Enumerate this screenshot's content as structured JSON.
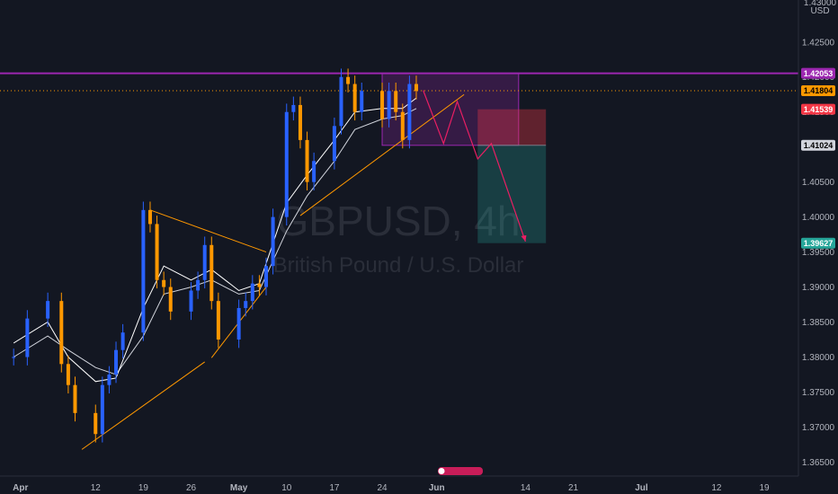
{
  "chart_data": {
    "type": "candlestick",
    "symbol": "GBPUSD",
    "timeframe": "4h",
    "watermark_title": "GBPUSD, 4h",
    "watermark_subtitle": "British Pound / U.S. Dollar",
    "y_axis_unit": "USD",
    "ylim": [
      1.363,
      1.431
    ],
    "y_ticks": [
      1.425,
      1.42,
      1.415,
      1.41,
      1.405,
      1.4,
      1.395,
      1.39,
      1.385,
      1.38,
      1.375,
      1.37,
      1.365
    ],
    "y_tick_labels": [
      "1.42500",
      "1.42000",
      "1.41500",
      "1.41000",
      "1.40500",
      "1.40000",
      "1.39500",
      "1.39000",
      "1.38500",
      "1.38000",
      "1.37500",
      "1.37000",
      "1.36500"
    ],
    "y_top_partial_label": "1.43000",
    "x_tick_labels": [
      "Apr",
      "12",
      "19",
      "26",
      "May",
      "10",
      "17",
      "24",
      "Jun",
      "14",
      "21",
      "Jul",
      "12",
      "19"
    ],
    "x_tick_dates": [
      "2021-04-01",
      "2021-04-12",
      "2021-04-19",
      "2021-04-26",
      "2021-05-03",
      "2021-05-10",
      "2021-05-17",
      "2021-05-24",
      "2021-06-01",
      "2021-06-14",
      "2021-06-21",
      "2021-07-01",
      "2021-07-12",
      "2021-07-19"
    ],
    "price_tags": [
      {
        "label": "1.42053",
        "value": 1.42053,
        "color": "#9c27b0",
        "text_color": "#ffffff"
      },
      {
        "label": "1.41804",
        "value": 1.41804,
        "color": "#ff9800",
        "text_color": "#000000"
      },
      {
        "label": "1.41539",
        "value": 1.41539,
        "color": "#f23645",
        "text_color": "#ffffff"
      },
      {
        "label": "1.41024",
        "value": 1.41024,
        "color": "#d1d4dc",
        "text_color": "#000000"
      },
      {
        "label": "1.39627",
        "value": 1.39627,
        "color": "#26a69a",
        "text_color": "#ffffff"
      }
    ],
    "horizontal_line": {
      "value": 1.42053,
      "color": "#9c27b0"
    },
    "last_price_line": {
      "value": 1.41804,
      "color": "#ff9800"
    },
    "short_position": {
      "entry": 1.41024,
      "stop": 1.41539,
      "target": 1.39627,
      "start_date": "2021-06-07",
      "end_date": "2021-06-17"
    },
    "consolidation_box": {
      "top": 1.42053,
      "bottom": 1.41024,
      "start_date": "2021-05-24",
      "end_date": "2021-06-13"
    },
    "trendlines": [
      {
        "from": [
          "2021-04-10",
          1.3668
        ],
        "to": [
          "2021-04-28",
          1.3793
        ]
      },
      {
        "from": [
          "2021-04-29",
          1.3799
        ],
        "to": [
          "2021-05-07",
          1.39
        ]
      },
      {
        "from": [
          "2021-04-20",
          1.401
        ],
        "to": [
          "2021-05-07",
          1.395
        ]
      },
      {
        "from": [
          "2021-05-12",
          1.4002
        ],
        "to": [
          "2021-06-05",
          1.4175
        ]
      }
    ],
    "projection_path": [
      [
        "2021-05-30",
        1.4181
      ],
      [
        "2021-06-02",
        1.4105
      ],
      [
        "2021-06-04",
        1.4165
      ],
      [
        "2021-06-07",
        1.4083
      ],
      [
        "2021-06-09",
        1.4105
      ],
      [
        "2021-06-14",
        1.3965
      ]
    ],
    "price_points": [
      [
        "2021-03-31",
        1.38
      ],
      [
        "2021-04-02",
        1.3855
      ],
      [
        "2021-04-05",
        1.388
      ],
      [
        "2021-04-07",
        1.379
      ],
      [
        "2021-04-08",
        1.376
      ],
      [
        "2021-04-09",
        1.372
      ],
      [
        "2021-04-12",
        1.369
      ],
      [
        "2021-04-13",
        1.376
      ],
      [
        "2021-04-14",
        1.3775
      ],
      [
        "2021-04-15",
        1.381
      ],
      [
        "2021-04-16",
        1.3835
      ],
      [
        "2021-04-19",
        1.401
      ],
      [
        "2021-04-20",
        1.399
      ],
      [
        "2021-04-21",
        1.391
      ],
      [
        "2021-04-22",
        1.39
      ],
      [
        "2021-04-23",
        1.3865
      ],
      [
        "2021-04-26",
        1.3895
      ],
      [
        "2021-04-27",
        1.391
      ],
      [
        "2021-04-28",
        1.396
      ],
      [
        "2021-04-29",
        1.388
      ],
      [
        "2021-04-30",
        1.3825
      ],
      [
        "2021-05-03",
        1.387
      ],
      [
        "2021-05-04",
        1.388
      ],
      [
        "2021-05-05",
        1.3905
      ],
      [
        "2021-05-06",
        1.39
      ],
      [
        "2021-05-07",
        1.393
      ],
      [
        "2021-05-08",
        1.4
      ],
      [
        "2021-05-10",
        1.415
      ],
      [
        "2021-05-11",
        1.416
      ],
      [
        "2021-05-12",
        1.411
      ],
      [
        "2021-05-13",
        1.405
      ],
      [
        "2021-05-14",
        1.408
      ],
      [
        "2021-05-17",
        1.413
      ],
      [
        "2021-05-18",
        1.42
      ],
      [
        "2021-05-19",
        1.419
      ],
      [
        "2021-05-20",
        1.415
      ],
      [
        "2021-05-21",
        1.418
      ],
      [
        "2021-05-24",
        1.414
      ],
      [
        "2021-05-25",
        1.418
      ],
      [
        "2021-05-26",
        1.415
      ],
      [
        "2021-05-27",
        1.411
      ],
      [
        "2021-05-28",
        1.419
      ],
      [
        "2021-05-29",
        1.418
      ]
    ],
    "ma_fast_points": [
      [
        "2021-03-31",
        1.382
      ],
      [
        "2021-04-05",
        1.385
      ],
      [
        "2021-04-08",
        1.38
      ],
      [
        "2021-04-12",
        1.3765
      ],
      [
        "2021-04-15",
        1.377
      ],
      [
        "2021-04-19",
        1.387
      ],
      [
        "2021-04-22",
        1.393
      ],
      [
        "2021-04-26",
        1.391
      ],
      [
        "2021-04-29",
        1.3925
      ],
      [
        "2021-05-03",
        1.3895
      ],
      [
        "2021-05-06",
        1.3905
      ],
      [
        "2021-05-10",
        1.402
      ],
      [
        "2021-05-13",
        1.406
      ],
      [
        "2021-05-17",
        1.411
      ],
      [
        "2021-05-20",
        1.415
      ],
      [
        "2021-05-24",
        1.4155
      ],
      [
        "2021-05-27",
        1.4155
      ],
      [
        "2021-05-29",
        1.417
      ]
    ],
    "ma_slow_points": [
      [
        "2021-03-31",
        1.38
      ],
      [
        "2021-04-05",
        1.383
      ],
      [
        "2021-04-08",
        1.381
      ],
      [
        "2021-04-12",
        1.3785
      ],
      [
        "2021-04-15",
        1.3775
      ],
      [
        "2021-04-19",
        1.383
      ],
      [
        "2021-04-22",
        1.389
      ],
      [
        "2021-04-26",
        1.39
      ],
      [
        "2021-04-29",
        1.391
      ],
      [
        "2021-05-03",
        1.389
      ],
      [
        "2021-05-06",
        1.3895
      ],
      [
        "2021-05-10",
        1.398
      ],
      [
        "2021-05-13",
        1.403
      ],
      [
        "2021-05-17",
        1.408
      ],
      [
        "2021-05-20",
        1.4125
      ],
      [
        "2021-05-24",
        1.414
      ],
      [
        "2021-05-27",
        1.4145
      ],
      [
        "2021-05-29",
        1.4155
      ]
    ],
    "grid": false,
    "x_axis_date_range": [
      "2021-03-29",
      "2021-07-24"
    ]
  }
}
